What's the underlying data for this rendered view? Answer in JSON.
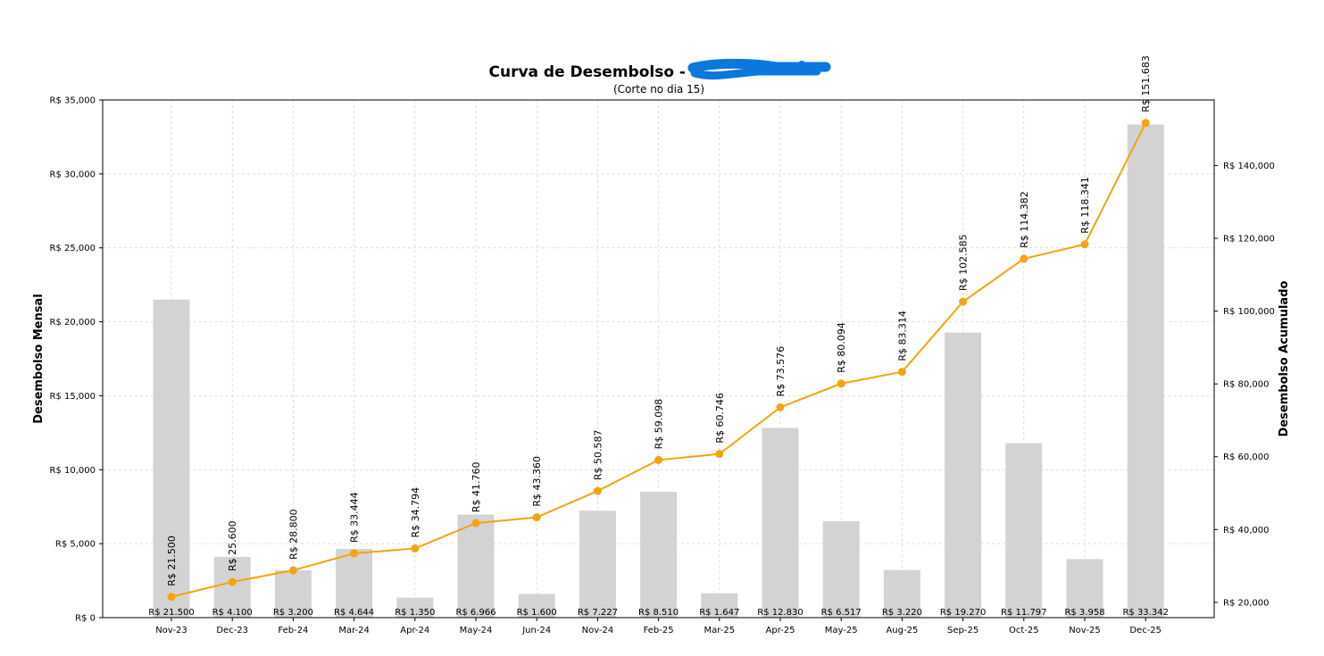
{
  "chart_data": {
    "type": "bar+line",
    "title": "Curva de Desembolso -",
    "subtitle": "(Corte no dia 15)",
    "ylabel_left": "Desembolso Mensal",
    "ylabel_right": "Desembolso Acumulado",
    "categories": [
      "Nov-23",
      "Dec-23",
      "Feb-24",
      "Mar-24",
      "Apr-24",
      "May-24",
      "Jun-24",
      "Nov-24",
      "Feb-25",
      "Mar-25",
      "Apr-25",
      "May-25",
      "Aug-25",
      "Sep-25",
      "Oct-25",
      "Nov-25",
      "Dec-25"
    ],
    "series": [
      {
        "kind": "bar",
        "axis": "left",
        "values": [
          21500,
          4100,
          3200,
          4644,
          1350,
          6966,
          1600,
          7227,
          8510,
          1647,
          12830,
          6517,
          3220,
          19270,
          11797,
          3958,
          33342
        ],
        "labels": [
          "R$ 21.500",
          "R$ 4.100",
          "R$ 3.200",
          "R$ 4.644",
          "R$ 1.350",
          "R$ 6.966",
          "R$ 1.600",
          "R$ 7.227",
          "R$ 8.510",
          "R$ 1.647",
          "R$ 12.830",
          "R$ 6.517",
          "R$ 3.220",
          "R$ 19.270",
          "R$ 11.797",
          "R$ 3.958",
          "R$ 33.342"
        ]
      },
      {
        "kind": "line",
        "axis": "right",
        "values": [
          21500,
          25600,
          28800,
          33444,
          34794,
          41760,
          43360,
          50587,
          59098,
          60746,
          73576,
          80094,
          83314,
          102585,
          114382,
          118341,
          151683
        ],
        "labels": [
          "R$ 21.500",
          "R$ 25.600",
          "R$ 28.800",
          "R$ 33.444",
          "R$ 34.794",
          "R$ 41.760",
          "R$ 43.360",
          "R$ 50.587",
          "R$ 59.098",
          "R$ 60.746",
          "R$ 73.576",
          "R$ 80.094",
          "R$ 83.314",
          "R$ 102.585",
          "R$ 114.382",
          "R$ 118.341",
          "R$ 151.683"
        ]
      }
    ],
    "ylim_left": [
      0,
      35000
    ],
    "ylim_right": [
      15800,
      158000
    ],
    "yticks_left": [
      0,
      5000,
      10000,
      15000,
      20000,
      25000,
      30000,
      35000
    ],
    "yticks_left_labels": [
      "R$ 0",
      "R$ 5,000",
      "R$ 10,000",
      "R$ 15,000",
      "R$ 20,000",
      "R$ 25,000",
      "R$ 30,000",
      "R$ 35,000"
    ],
    "yticks_right": [
      20000,
      40000,
      60000,
      80000,
      100000,
      120000,
      140000
    ],
    "yticks_right_labels": [
      "R$ 20,000",
      "R$ 40,000",
      "R$ 60,000",
      "R$ 80,000",
      "R$ 100,000",
      "R$ 120,000",
      "R$ 140,000"
    ],
    "grid": true,
    "colors": {
      "bar": "#d3d3d3",
      "line": "#f5a30f",
      "grid": "#d0d0d0",
      "redaction": "#0a78dd"
    }
  }
}
